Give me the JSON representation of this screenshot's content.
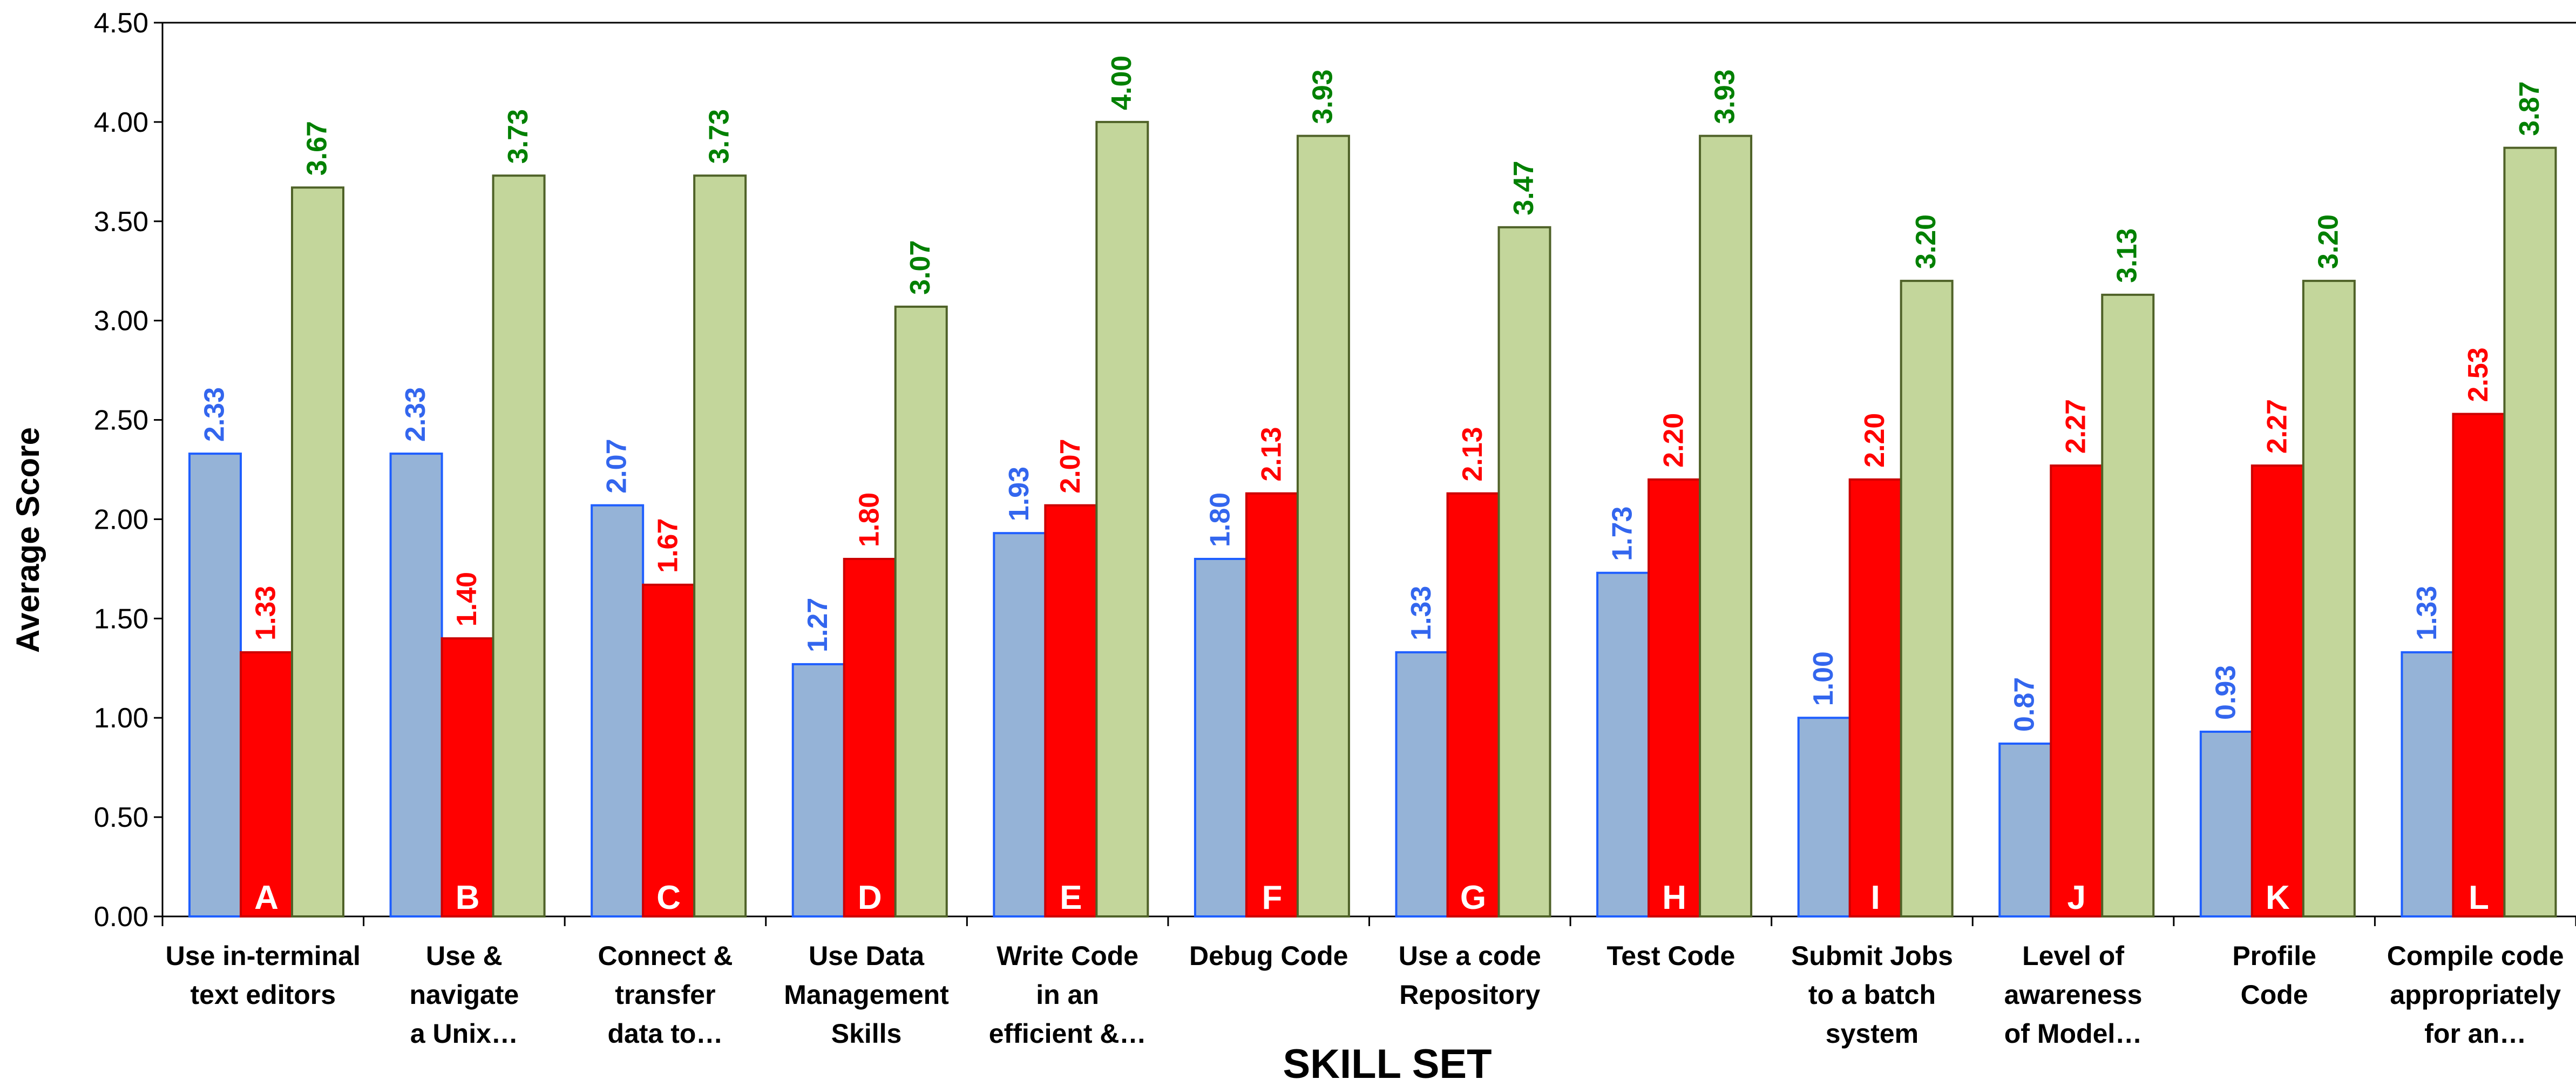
{
  "chart_data": {
    "type": "bar",
    "xlabel": "SKILL SET",
    "ylabel": "Average Score",
    "ylim": [
      0,
      4.5
    ],
    "yticks": [
      "0.00",
      "0.50",
      "1.00",
      "1.50",
      "2.00",
      "2.50",
      "3.00",
      "3.50",
      "4.00",
      "4.50"
    ],
    "grid": false,
    "legend": "none",
    "categories": [
      [
        "Use in-terminal",
        "text editors"
      ],
      [
        "Use &",
        "navigate",
        "a Unix…"
      ],
      [
        "Connect &",
        "transfer",
        "data to…"
      ],
      [
        "Use Data",
        "Management",
        "Skills"
      ],
      [
        "Write Code",
        "in an",
        "efficient &…"
      ],
      [
        "Debug Code"
      ],
      [
        "Use a code",
        "Repository"
      ],
      [
        "Test Code"
      ],
      [
        "Submit Jobs",
        "to a batch",
        "system"
      ],
      [
        "Level of",
        "awareness",
        "of Model…"
      ],
      [
        "Profile",
        "Code"
      ],
      [
        "Compile code",
        "appropriately",
        "for an…"
      ]
    ],
    "bar_letters": [
      "A",
      "B",
      "C",
      "D",
      "E",
      "F",
      "G",
      "H",
      "I",
      "J",
      "K",
      "L"
    ],
    "series": [
      {
        "fill": "#95b3d7",
        "stroke": "#1f5fff",
        "label_color": "#3366ee",
        "values": [
          2.33,
          2.33,
          2.07,
          1.27,
          1.93,
          1.8,
          1.33,
          1.73,
          1.0,
          0.87,
          0.93,
          1.33
        ],
        "labels": [
          "2.33",
          "2.33",
          "2.07",
          "1.27",
          "1.93",
          "1.80",
          "1.33",
          "1.73",
          "1.00",
          "0.87",
          "0.93",
          "1.33"
        ]
      },
      {
        "fill": "#ff0000",
        "stroke": "#cc0000",
        "label_color": "#ff0000",
        "values": [
          1.33,
          1.4,
          1.67,
          1.8,
          2.07,
          2.13,
          2.13,
          2.2,
          2.2,
          2.27,
          2.27,
          2.53
        ],
        "labels": [
          "1.33",
          "1.40",
          "1.67",
          "1.80",
          "2.07",
          "2.13",
          "2.13",
          "2.20",
          "2.20",
          "2.27",
          "2.27",
          "2.53"
        ]
      },
      {
        "fill": "#c3d69b",
        "stroke": "#4f6228",
        "label_color": "#008000",
        "values": [
          3.67,
          3.73,
          3.73,
          3.07,
          4.0,
          3.93,
          3.47,
          3.93,
          3.2,
          3.13,
          3.2,
          3.87
        ],
        "labels": [
          "3.67",
          "3.73",
          "3.73",
          "3.07",
          "4.00",
          "3.93",
          "3.47",
          "3.93",
          "3.20",
          "3.13",
          "3.20",
          "3.87"
        ]
      }
    ]
  }
}
